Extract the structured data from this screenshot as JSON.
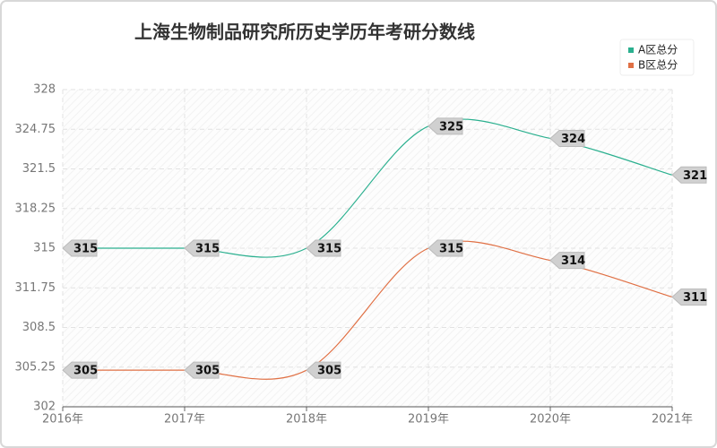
{
  "chart_data": {
    "type": "line",
    "title": "上海生物制品研究所历史学历年考研分数线",
    "categories": [
      "2016年",
      "2017年",
      "2018年",
      "2019年",
      "2020年",
      "2021年"
    ],
    "series": [
      {
        "name": "A区总分",
        "color": "#2bb08f",
        "values": [
          315,
          315,
          315,
          325,
          324,
          321
        ]
      },
      {
        "name": "B区总分",
        "color": "#e07044",
        "values": [
          305,
          305,
          305,
          315,
          314,
          311
        ]
      }
    ],
    "ylim": [
      302,
      328
    ],
    "yticks": [
      302,
      305.25,
      308.5,
      311.75,
      315,
      318.25,
      321.5,
      324.75,
      328
    ],
    "grid": true,
    "legend": "top-right",
    "smooth": true
  }
}
